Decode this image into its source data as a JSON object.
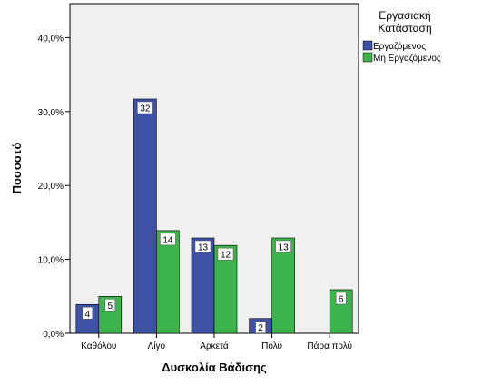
{
  "chart_data": {
    "type": "bar",
    "title": "",
    "xlabel": "Δυσκολία Βάδισης",
    "ylabel": "Ποσοστό",
    "categories": [
      "Καθόλου",
      "Λίγο",
      "Αρκετά",
      "Πολύ",
      "Πάρα πολύ"
    ],
    "series": [
      {
        "name": "Εργαζόμενος",
        "color": "#3f51a5",
        "values": [
          3.9,
          31.7,
          12.9,
          2.0,
          null
        ],
        "labels": [
          "4",
          "32",
          "13",
          "2",
          ""
        ]
      },
      {
        "name": "Μη Εργαζόμενος",
        "color": "#3cb44b",
        "values": [
          5.0,
          13.9,
          11.9,
          12.9,
          5.9
        ],
        "labels": [
          "5",
          "14",
          "12",
          "13",
          "6"
        ]
      }
    ],
    "ylim": [
      0,
      44.6
    ],
    "yticks": [
      0,
      10,
      20,
      30,
      40
    ],
    "ytick_labels": [
      "0,0%",
      "10,0%",
      "20,0%",
      "30,0%",
      "40,0%"
    ],
    "legend": {
      "title_line1": "Εργασιακή",
      "title_line2": "Κατάσταση",
      "position": "right"
    },
    "plot_background": "#f0f0f0",
    "grid": false
  }
}
